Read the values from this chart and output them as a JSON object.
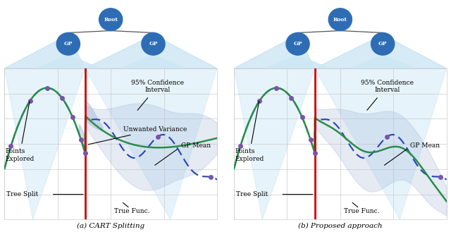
{
  "fig_width": 6.4,
  "fig_height": 3.46,
  "bg_color": "#ffffff",
  "grid_color": "#cccccc",
  "split_line_color": "#cc0000",
  "gp_mean_color": "#2a8c4a",
  "true_func_color": "#2244bb",
  "ci_fill_color": "#aabcda",
  "point_color": "#7755aa",
  "node_color": "#2e6db4",
  "subplot_titles": [
    "(a) CART Splitting",
    "(b) Proposed approach"
  ],
  "xlim": [
    0,
    10
  ],
  "ylim": [
    -3.2,
    2.2
  ],
  "split_x": 3.8
}
